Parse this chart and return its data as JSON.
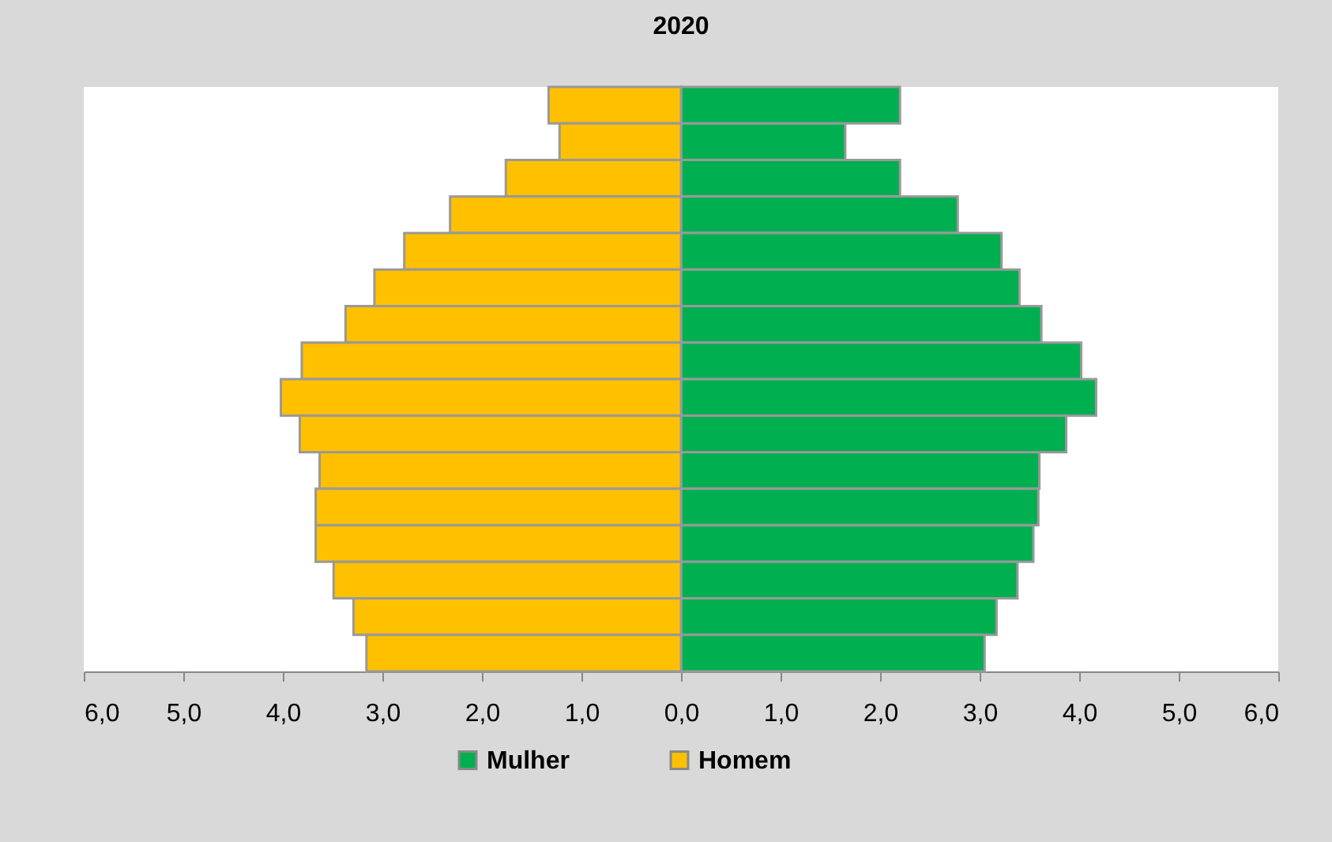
{
  "chart_data": {
    "type": "bar",
    "title": "2020",
    "orientation": "horizontal",
    "stacked": true,
    "categories": [
      null,
      null,
      null,
      null,
      null,
      null,
      null,
      null,
      null,
      null,
      null,
      null,
      null,
      null,
      null,
      null
    ],
    "series": [
      {
        "name": "Mulher",
        "color": "#00b050",
        "values": [
          2.2,
          1.65,
          2.2,
          2.78,
          3.22,
          3.4,
          3.62,
          4.02,
          4.17,
          3.87,
          3.6,
          3.59,
          3.54,
          3.38,
          3.17,
          3.05
        ]
      },
      {
        "name": "Homem",
        "color": "#ffc000",
        "values": [
          -1.33,
          -1.22,
          -1.76,
          -2.32,
          -2.78,
          -3.08,
          -3.37,
          -3.81,
          -4.02,
          -3.83,
          -3.63,
          -3.67,
          -3.67,
          -3.49,
          -3.29,
          -3.16
        ]
      }
    ],
    "xlim": [
      -6,
      6
    ],
    "xticks": [
      {
        "value": -6,
        "label": "6,0"
      },
      {
        "value": -5,
        "label": "5,0"
      },
      {
        "value": -4,
        "label": "4,0"
      },
      {
        "value": -3,
        "label": "3,0"
      },
      {
        "value": -2,
        "label": "2,0"
      },
      {
        "value": -1,
        "label": "1,0"
      },
      {
        "value": 0,
        "label": "0,0"
      },
      {
        "value": 1,
        "label": "1,0"
      },
      {
        "value": 2,
        "label": "2,0"
      },
      {
        "value": 3,
        "label": "3,0"
      },
      {
        "value": 4,
        "label": "4,0"
      },
      {
        "value": 5,
        "label": "5,0"
      },
      {
        "value": 6,
        "label": "6,0"
      }
    ],
    "grid": false,
    "legend": "bottom"
  }
}
